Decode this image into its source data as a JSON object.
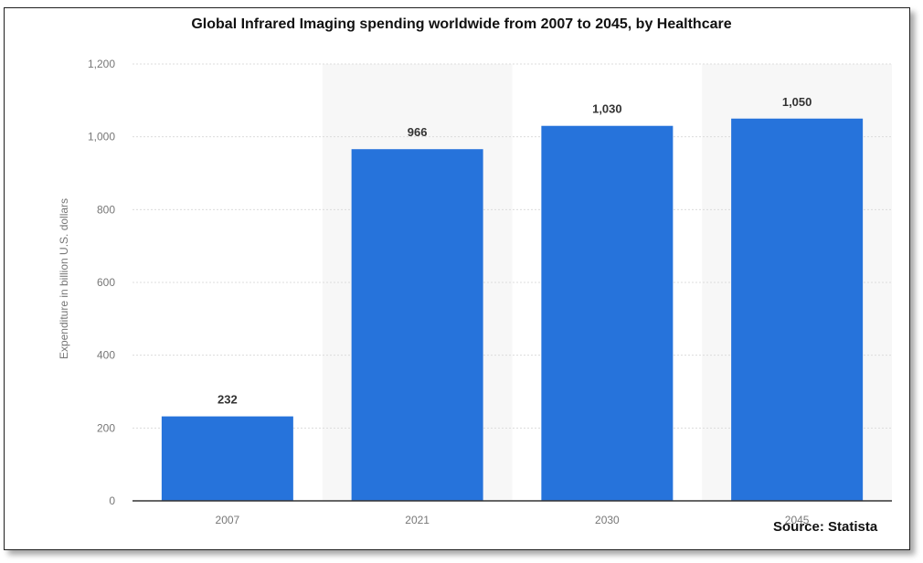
{
  "title": "Global Infrared Imaging spending worldwide from 2007 to 2045, by Healthcare",
  "source": "Source: Statista",
  "colors": {
    "bar": "#2673db",
    "grid": "#dcdcdc",
    "band": "#f7f7f7",
    "axis": "#333333"
  },
  "chart_data": {
    "type": "bar",
    "title": "Global Infrared Imaging spending worldwide from 2007 to 2045, by Healthcare",
    "categories": [
      "2007",
      "2021",
      "2030",
      "2045"
    ],
    "values": [
      232,
      966,
      1030,
      1050
    ],
    "data_labels": [
      "232",
      "966",
      "1,030",
      "1,050"
    ],
    "xlabel": "",
    "ylabel": "Expenditure in billion U.S. dollars",
    "ylim": [
      0,
      1200
    ],
    "yticks": [
      0,
      200,
      400,
      600,
      800,
      1000,
      1200
    ],
    "ytick_labels": [
      "0",
      "200",
      "400",
      "600",
      "800",
      "1,000",
      "1,200"
    ],
    "grid": true,
    "legend": "none"
  }
}
